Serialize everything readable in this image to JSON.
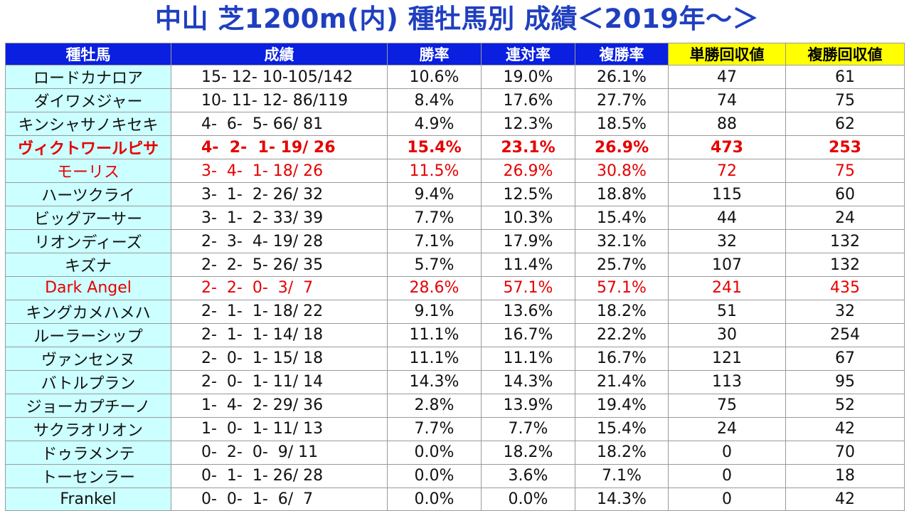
{
  "title": "中山 芝1200m(内) 種牡馬別 成績＜2019年～＞",
  "headers": [
    "種牡馬",
    "成績",
    "勝率",
    "連対率",
    "複勝率",
    "単勝回収値",
    "複勝回収値"
  ],
  "colors": {
    "title": "#1f3fbf",
    "header_bg": "#0a1fe0",
    "header_highlight_bg": "#ffff00",
    "name_bg": "#ccffff",
    "highlight_text": "#e60000"
  },
  "rows": [
    {
      "name": "ロードカナロア",
      "record": "15- 12- 10-105/142",
      "win": "10.6%",
      "quinella": "19.0%",
      "place": "26.1%",
      "win_return": "47",
      "place_return": "61",
      "style": ""
    },
    {
      "name": "ダイワメジャー",
      "record": "10- 11- 12- 86/119",
      "win": "8.4%",
      "quinella": "17.6%",
      "place": "27.7%",
      "win_return": "74",
      "place_return": "75",
      "style": ""
    },
    {
      "name": "キンシャサノキセキ",
      "record": "4-  6-  5- 66/ 81",
      "win": "4.9%",
      "quinella": "12.3%",
      "place": "18.5%",
      "win_return": "88",
      "place_return": "62",
      "style": ""
    },
    {
      "name": "ヴィクトワールピサ",
      "record": "4-  2-  1- 19/ 26",
      "win": "15.4%",
      "quinella": "23.1%",
      "place": "26.9%",
      "win_return": "473",
      "place_return": "253",
      "style": "red bold"
    },
    {
      "name": "モーリス",
      "record": "3-  4-  1- 18/ 26",
      "win": "11.5%",
      "quinella": "26.9%",
      "place": "30.8%",
      "win_return": "72",
      "place_return": "75",
      "style": "red"
    },
    {
      "name": "ハーツクライ",
      "record": "3-  1-  2- 26/ 32",
      "win": "9.4%",
      "quinella": "12.5%",
      "place": "18.8%",
      "win_return": "115",
      "place_return": "60",
      "style": ""
    },
    {
      "name": "ビッグアーサー",
      "record": "3-  1-  2- 33/ 39",
      "win": "7.7%",
      "quinella": "10.3%",
      "place": "15.4%",
      "win_return": "44",
      "place_return": "24",
      "style": ""
    },
    {
      "name": "リオンディーズ",
      "record": "2-  3-  4- 19/ 28",
      "win": "7.1%",
      "quinella": "17.9%",
      "place": "32.1%",
      "win_return": "32",
      "place_return": "132",
      "style": ""
    },
    {
      "name": "キズナ",
      "record": "2-  2-  5- 26/ 35",
      "win": "5.7%",
      "quinella": "11.4%",
      "place": "25.7%",
      "win_return": "107",
      "place_return": "132",
      "style": ""
    },
    {
      "name": "Dark Angel",
      "record": "2-  2-  0-  3/  7",
      "win": "28.6%",
      "quinella": "57.1%",
      "place": "57.1%",
      "win_return": "241",
      "place_return": "435",
      "style": "red"
    },
    {
      "name": "キングカメハメハ",
      "record": "2-  1-  1- 18/ 22",
      "win": "9.1%",
      "quinella": "13.6%",
      "place": "18.2%",
      "win_return": "51",
      "place_return": "32",
      "style": ""
    },
    {
      "name": "ルーラーシップ",
      "record": "2-  1-  1- 14/ 18",
      "win": "11.1%",
      "quinella": "16.7%",
      "place": "22.2%",
      "win_return": "30",
      "place_return": "254",
      "style": ""
    },
    {
      "name": "ヴァンセンヌ",
      "record": "2-  0-  1- 15/ 18",
      "win": "11.1%",
      "quinella": "11.1%",
      "place": "16.7%",
      "win_return": "121",
      "place_return": "67",
      "style": ""
    },
    {
      "name": "バトルプラン",
      "record": "2-  0-  1- 11/ 14",
      "win": "14.3%",
      "quinella": "14.3%",
      "place": "21.4%",
      "win_return": "113",
      "place_return": "95",
      "style": ""
    },
    {
      "name": "ジョーカプチーノ",
      "record": "1-  4-  2- 29/ 36",
      "win": "2.8%",
      "quinella": "13.9%",
      "place": "19.4%",
      "win_return": "75",
      "place_return": "52",
      "style": ""
    },
    {
      "name": "サクラオリオン",
      "record": "1-  0-  1- 11/ 13",
      "win": "7.7%",
      "quinella": "7.7%",
      "place": "15.4%",
      "win_return": "24",
      "place_return": "42",
      "style": ""
    },
    {
      "name": "ドゥラメンテ",
      "record": "0-  2-  0-  9/ 11",
      "win": "0.0%",
      "quinella": "18.2%",
      "place": "18.2%",
      "win_return": "0",
      "place_return": "70",
      "style": ""
    },
    {
      "name": "トーセンラー",
      "record": "0-  1-  1- 26/ 28",
      "win": "0.0%",
      "quinella": "3.6%",
      "place": "7.1%",
      "win_return": "0",
      "place_return": "18",
      "style": ""
    },
    {
      "name": "Frankel",
      "record": "0-  0-  1-  6/  7",
      "win": "0.0%",
      "quinella": "0.0%",
      "place": "14.3%",
      "win_return": "0",
      "place_return": "42",
      "style": ""
    }
  ]
}
